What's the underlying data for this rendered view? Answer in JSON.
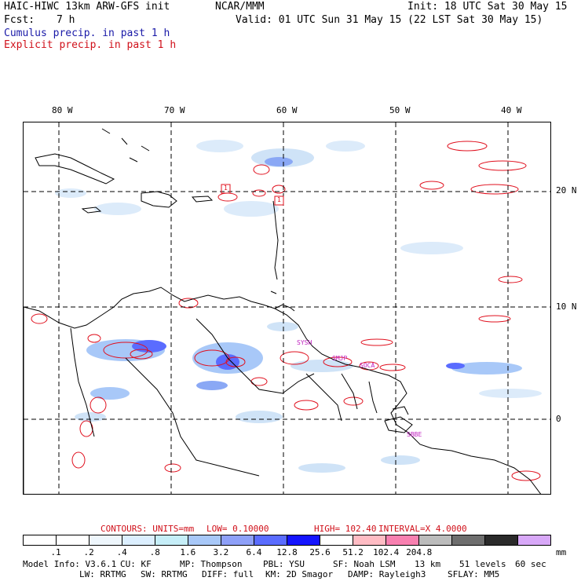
{
  "header": {
    "model_title": "HAIC-HIWC 13km ARW-GFS init",
    "org": "NCAR/MMM",
    "init": "Init: 18 UTC Sat 30 May 15",
    "fcst_label": "Fcst:",
    "fcst_value": "7 h",
    "valid": "Valid: 01 UTC Sun 31 May 15 (22 LST Sat 30 May 15)",
    "cumulus_label": "Cumulus precip. in past 1 h",
    "explicit_label": "Explicit precip. in past 1 h"
  },
  "map": {
    "lon_labels": [
      "80 W",
      "70 W",
      "60 W",
      "50 W",
      "40 W"
    ],
    "lat_labels": [
      "20 N",
      "10 N",
      "0"
    ],
    "stations": [
      "SYSH",
      "SMJP",
      "SOCA",
      "SBBE"
    ],
    "box_markers": [
      "1",
      "1"
    ],
    "colors": {
      "explicit": "#e0101e",
      "cumulus_light": "#cfe3f7",
      "cumulus_mid": "#8aa8f5",
      "cumulus_dark": "#5a6cff",
      "coast": "#000000",
      "grid": "#000000",
      "station": "#c020c0"
    }
  },
  "contours": {
    "units": "CONTOURS:  UNITS=mm",
    "low": "LOW=  0.10000",
    "high": "HIGH=   102.40",
    "interval": "INTERVAL=X   4.0000"
  },
  "legend": {
    "colors": [
      "#ffffff",
      "#ffffff",
      "#eef6fc",
      "#dcefff",
      "#c6eef8",
      "#a8c8f8",
      "#8ea0f8",
      "#5a6cff",
      "#1414ff",
      "#ffffff",
      "#ffbcc4",
      "#f880b0",
      "#bcbcbc",
      "#6e6e6e",
      "#2a2a2a",
      "#d8a8f8"
    ],
    "labels": [
      ".1",
      ".2",
      ".4",
      ".8",
      "1.6",
      "3.2",
      "6.4",
      "12.8",
      "25.6",
      "51.2",
      "102.4",
      "204.8"
    ],
    "unit": "mm"
  },
  "model_info": {
    "line1": [
      "Model Info: V3.6.1",
      "CU: KF",
      "MP: Thompson",
      "PBL: YSU",
      "SF: Noah LSM",
      "13 km",
      "51 levels",
      "60 sec"
    ],
    "line2": [
      "LW: RRTMG",
      "SW: RRTMG",
      "DIFF: full",
      "KM: 2D Smagor",
      "DAMP: Rayleigh3",
      "SFLAY: MM5"
    ]
  }
}
